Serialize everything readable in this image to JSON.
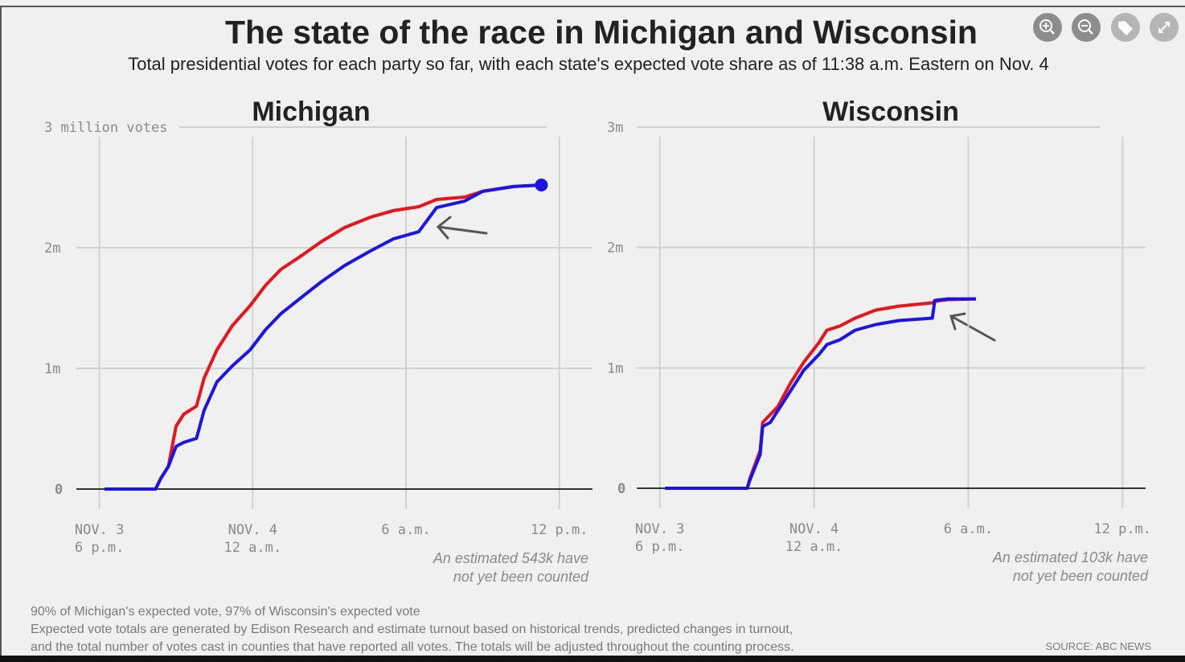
{
  "title": "The state of the race in Michigan and Wisconsin",
  "subtitle": "Total presidential votes for each party so far, with each state's expected vote share as of 11:38 a.m. Eastern on Nov. 4",
  "notes": [
    "90% of Michigan's expected vote, 97% of Wisconsin's expected vote",
    "Expected vote totals are generated by Edison Research and estimate turnout based on historical trends, predicted changes in turnout,",
    "and the total number of votes cast in counties that have reported all votes. The totals will be adjusted throughout the counting process."
  ],
  "source": "SOURCE: ABC NEWS",
  "chart_data": [
    {
      "type": "line",
      "title": "Michigan",
      "x": [
        0.2,
        2.2,
        2.4,
        2.7,
        3.0,
        3.3,
        3.8,
        4.1,
        4.6,
        5.2,
        5.9,
        6.5,
        7.1,
        7.9,
        8.7,
        9.6,
        10.6,
        11.5,
        12.5,
        13.2,
        14.3,
        15.0,
        16.2,
        17.3
      ],
      "series": [
        {
          "color": "#e8141c",
          "values": [
            0,
            0,
            87000,
            187000,
            520000,
            620000,
            687000,
            920000,
            1153000,
            1353000,
            1520000,
            1687000,
            1820000,
            1933000,
            2053000,
            2167000,
            2253000,
            2307000,
            2340000,
            2400000,
            2420000,
            2467000,
            2507000,
            2520000
          ]
        },
        {
          "color": "#1a14e8",
          "end_dot": true,
          "values": [
            0,
            0,
            87000,
            187000,
            353000,
            387000,
            420000,
            653000,
            887000,
            1020000,
            1153000,
            1320000,
            1453000,
            1587000,
            1720000,
            1853000,
            1973000,
            2073000,
            2133000,
            2333000,
            2387000,
            2467000,
            2507000,
            2520000
          ]
        }
      ],
      "xlim": [
        -0.9,
        19.3
      ],
      "xticks": [
        {
          "value": 0,
          "label": "NOV. 3\n6 p.m."
        },
        {
          "value": 6,
          "label": "NOV. 4\n12 a.m."
        },
        {
          "value": 12,
          "label": "6 a.m."
        },
        {
          "value": 18,
          "label": "12 p.m."
        }
      ],
      "ylim": [
        0,
        3000000
      ],
      "yticks": [
        0,
        {
          "value": 1000000,
          "label": "1m"
        },
        {
          "value": 2000000,
          "label": "2m"
        },
        {
          "value": 3000000,
          "label": "3 million votes"
        }
      ],
      "grid": true,
      "annotation": "An estimated 543k have\nnot yet been counted"
    },
    {
      "type": "line",
      "title": "Wisconsin",
      "x": [
        0.2,
        3.4,
        3.5,
        3.9,
        4.0,
        4.3,
        4.6,
        5.1,
        5.6,
        6.2,
        6.5,
        7.0,
        7.6,
        8.4,
        9.3,
        10.6,
        10.7,
        11.2,
        12.3
      ],
      "series": [
        {
          "color": "#e8141c",
          "values": [
            0,
            0,
            80000,
            313000,
            547000,
            613000,
            680000,
            880000,
            1047000,
            1213000,
            1313000,
            1347000,
            1413000,
            1480000,
            1513000,
            1540000,
            1553000,
            1567000,
            1573000
          ]
        },
        {
          "color": "#1a14e8",
          "values": [
            0,
            0,
            67000,
            280000,
            513000,
            547000,
            647000,
            813000,
            980000,
            1113000,
            1193000,
            1233000,
            1313000,
            1360000,
            1393000,
            1413000,
            1560000,
            1573000,
            1573000
          ]
        }
      ],
      "xlim": [
        -0.9,
        18.9
      ],
      "xticks": [
        {
          "value": 0,
          "label": "NOV. 3\n6 p.m."
        },
        {
          "value": 6,
          "label": "NOV. 4\n12 a.m."
        },
        {
          "value": 12,
          "label": "6 a.m."
        },
        {
          "value": 18,
          "label": "12 p.m."
        }
      ],
      "ylim": [
        0,
        3000000
      ],
      "yticks": [
        0,
        {
          "value": 1000000,
          "label": "1m"
        },
        {
          "value": 2000000,
          "label": "2m"
        },
        {
          "value": 3000000,
          "label": "3m"
        }
      ],
      "grid": true,
      "annotation": "An estimated 103k have\nnot yet been counted"
    }
  ]
}
